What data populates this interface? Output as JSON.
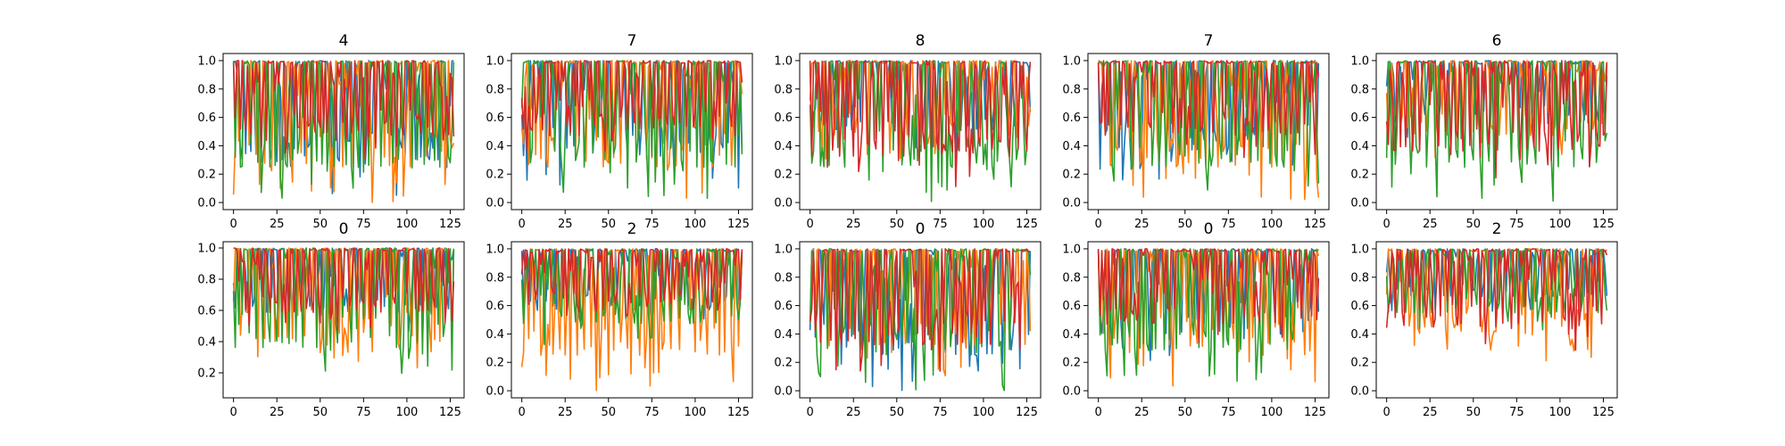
{
  "chart_data": [
    {
      "type": "line",
      "title": "4",
      "xticks": [
        0,
        25,
        50,
        75,
        100,
        125
      ],
      "yticks": [
        "0.0",
        "0.2",
        "0.4",
        "0.6",
        "0.8",
        "1.0"
      ],
      "xlim": [
        -6,
        133
      ],
      "ylim": [
        -0.05,
        1.05
      ],
      "series": [
        {
          "color": "#1f77b4",
          "seed": 11,
          "period": 3.2,
          "min": 0.05,
          "max": 1.0
        },
        {
          "color": "#ff7f0e",
          "seed": 12,
          "period": 3.0,
          "min": 0.0,
          "max": 1.0
        },
        {
          "color": "#2ca02c",
          "seed": 13,
          "period": 3.4,
          "min": 0.0,
          "max": 1.0
        },
        {
          "color": "#d62728",
          "seed": 14,
          "period": 3.1,
          "min": 0.25,
          "max": 1.0
        }
      ]
    },
    {
      "type": "line",
      "title": "7",
      "xticks": [
        0,
        25,
        50,
        75,
        100,
        125
      ],
      "yticks": [
        "0.0",
        "0.2",
        "0.4",
        "0.6",
        "0.8",
        "1.0"
      ],
      "xlim": [
        -6,
        133
      ],
      "ylim": [
        -0.05,
        1.05
      ],
      "series": [
        {
          "color": "#1f77b4",
          "seed": 21,
          "period": 4.0,
          "min": 0.1,
          "max": 1.0
        },
        {
          "color": "#ff7f0e",
          "seed": 22,
          "period": 3.6,
          "min": 0.0,
          "max": 1.0
        },
        {
          "color": "#2ca02c",
          "seed": 23,
          "period": 4.4,
          "min": 0.0,
          "max": 1.0
        },
        {
          "color": "#d62728",
          "seed": 24,
          "period": 3.8,
          "min": 0.35,
          "max": 1.0
        }
      ]
    },
    {
      "type": "line",
      "title": "8",
      "xticks": [
        0,
        25,
        50,
        75,
        100,
        125
      ],
      "yticks": [
        "0.0",
        "0.2",
        "0.4",
        "0.6",
        "0.8",
        "1.0"
      ],
      "xlim": [
        -6,
        133
      ],
      "ylim": [
        -0.05,
        1.05
      ],
      "series": [
        {
          "color": "#1f77b4",
          "seed": 31,
          "period": 4.5,
          "min": 0.35,
          "max": 1.0
        },
        {
          "color": "#ff7f0e",
          "seed": 32,
          "period": 4.2,
          "min": 0.3,
          "max": 1.0
        },
        {
          "color": "#2ca02c",
          "seed": 33,
          "period": 4.8,
          "min": 0.0,
          "max": 1.0
        },
        {
          "color": "#d62728",
          "seed": 34,
          "period": 4.0,
          "min": 0.1,
          "max": 1.0
        }
      ]
    },
    {
      "type": "line",
      "title": "7",
      "xticks": [
        0,
        25,
        50,
        75,
        100,
        125
      ],
      "yticks": [
        "0.0",
        "0.2",
        "0.4",
        "0.6",
        "0.8",
        "1.0"
      ],
      "xlim": [
        -6,
        133
      ],
      "ylim": [
        -0.05,
        1.05
      ],
      "series": [
        {
          "color": "#1f77b4",
          "seed": 41,
          "period": 3.5,
          "min": 0.15,
          "max": 1.0
        },
        {
          "color": "#ff7f0e",
          "seed": 42,
          "period": 3.4,
          "min": 0.0,
          "max": 1.0
        },
        {
          "color": "#2ca02c",
          "seed": 43,
          "period": 3.8,
          "min": 0.0,
          "max": 1.0
        },
        {
          "color": "#d62728",
          "seed": 44,
          "period": 3.3,
          "min": 0.3,
          "max": 1.0
        }
      ]
    },
    {
      "type": "line",
      "title": "6",
      "xticks": [
        0,
        25,
        50,
        75,
        100,
        125
      ],
      "yticks": [
        "0.0",
        "0.2",
        "0.4",
        "0.6",
        "0.8",
        "1.0"
      ],
      "xlim": [
        -6,
        133
      ],
      "ylim": [
        -0.05,
        1.05
      ],
      "series": [
        {
          "color": "#1f77b4",
          "seed": 51,
          "period": 4.2,
          "min": 0.4,
          "max": 1.0
        },
        {
          "color": "#ff7f0e",
          "seed": 52,
          "period": 3.9,
          "min": 0.3,
          "max": 1.0
        },
        {
          "color": "#2ca02c",
          "seed": 53,
          "period": 4.5,
          "min": 0.0,
          "max": 1.0
        },
        {
          "color": "#d62728",
          "seed": 54,
          "period": 3.7,
          "min": 0.15,
          "max": 1.0
        }
      ]
    },
    {
      "type": "line",
      "title": "0",
      "xticks": [
        0,
        25,
        50,
        75,
        100,
        125
      ],
      "yticks": [
        "0.2",
        "0.4",
        "0.6",
        "0.8",
        "1.0"
      ],
      "xlim": [
        -6,
        133
      ],
      "ylim": [
        0.04,
        1.04
      ],
      "series": [
        {
          "color": "#1f77b4",
          "seed": 61,
          "period": 3.6,
          "min": 0.45,
          "max": 1.0
        },
        {
          "color": "#ff7f0e",
          "seed": 62,
          "period": 3.4,
          "min": 0.2,
          "max": 1.0
        },
        {
          "color": "#2ca02c",
          "seed": 63,
          "period": 4.0,
          "min": 0.15,
          "max": 1.0
        },
        {
          "color": "#d62728",
          "seed": 64,
          "period": 3.5,
          "min": 0.45,
          "max": 1.0
        }
      ]
    },
    {
      "type": "line",
      "title": "2",
      "xticks": [
        0,
        25,
        50,
        75,
        100,
        125
      ],
      "yticks": [
        "0.0",
        "0.2",
        "0.4",
        "0.6",
        "0.8",
        "1.0"
      ],
      "xlim": [
        -6,
        133
      ],
      "ylim": [
        -0.05,
        1.05
      ],
      "series": [
        {
          "color": "#1f77b4",
          "seed": 71,
          "period": 4.1,
          "min": 0.45,
          "max": 1.0
        },
        {
          "color": "#ff7f0e",
          "seed": 72,
          "period": 3.6,
          "min": 0.0,
          "max": 1.0
        },
        {
          "color": "#2ca02c",
          "seed": 73,
          "period": 4.3,
          "min": 0.3,
          "max": 1.0
        },
        {
          "color": "#d62728",
          "seed": 74,
          "period": 3.8,
          "min": 0.5,
          "max": 1.0
        }
      ]
    },
    {
      "type": "line",
      "title": "0",
      "xticks": [
        0,
        25,
        50,
        75,
        100,
        125
      ],
      "yticks": [
        "0.0",
        "0.2",
        "0.4",
        "0.6",
        "0.8",
        "1.0"
      ],
      "xlim": [
        -6,
        133
      ],
      "ylim": [
        -0.05,
        1.05
      ],
      "series": [
        {
          "color": "#1f77b4",
          "seed": 81,
          "period": 3.0,
          "min": 0.0,
          "max": 1.0
        },
        {
          "color": "#ff7f0e",
          "seed": 82,
          "period": 2.9,
          "min": 0.1,
          "max": 1.0
        },
        {
          "color": "#2ca02c",
          "seed": 83,
          "period": 3.1,
          "min": 0.0,
          "max": 1.0
        },
        {
          "color": "#d62728",
          "seed": 84,
          "period": 2.8,
          "min": 0.1,
          "max": 1.0
        }
      ]
    },
    {
      "type": "line",
      "title": "0",
      "xticks": [
        0,
        25,
        50,
        75,
        100,
        125
      ],
      "yticks": [
        "0.0",
        "0.2",
        "0.4",
        "0.6",
        "0.8",
        "1.0"
      ],
      "xlim": [
        -6,
        133
      ],
      "ylim": [
        -0.05,
        1.05
      ],
      "series": [
        {
          "color": "#1f77b4",
          "seed": 91,
          "period": 3.2,
          "min": 0.2,
          "max": 1.0
        },
        {
          "color": "#ff7f0e",
          "seed": 92,
          "period": 3.0,
          "min": 0.0,
          "max": 1.0
        },
        {
          "color": "#2ca02c",
          "seed": 93,
          "period": 3.4,
          "min": 0.05,
          "max": 1.0
        },
        {
          "color": "#d62728",
          "seed": 94,
          "period": 3.1,
          "min": 0.3,
          "max": 1.0
        }
      ]
    },
    {
      "type": "line",
      "title": "2",
      "xticks": [
        0,
        25,
        50,
        75,
        100,
        125
      ],
      "yticks": [
        "0.0",
        "0.2",
        "0.4",
        "0.6",
        "0.8",
        "1.0"
      ],
      "xlim": [
        -6,
        133
      ],
      "ylim": [
        -0.05,
        1.05
      ],
      "series": [
        {
          "color": "#1f77b4",
          "seed": 101,
          "period": 4.6,
          "min": 0.55,
          "max": 1.0
        },
        {
          "color": "#ff7f0e",
          "seed": 102,
          "period": 4.2,
          "min": 0.2,
          "max": 1.0
        },
        {
          "color": "#2ca02c",
          "seed": 103,
          "period": 4.8,
          "min": 0.4,
          "max": 1.0
        },
        {
          "color": "#d62728",
          "seed": 104,
          "period": 4.4,
          "min": 0.25,
          "max": 1.0
        }
      ]
    }
  ]
}
